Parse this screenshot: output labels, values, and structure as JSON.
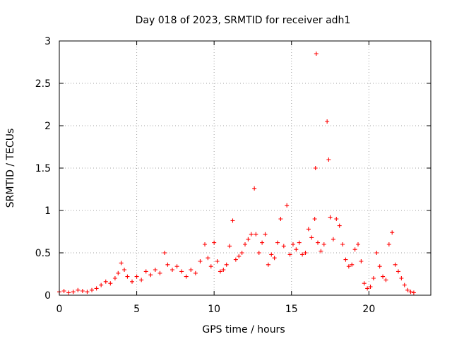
{
  "chart_data": {
    "type": "scatter",
    "title": "Day 018 of 2023, SRMTID for receiver adh1",
    "xlabel": "GPS time / hours",
    "ylabel": "SRMTID / TECUs",
    "xlim": [
      0,
      24
    ],
    "ylim": [
      0,
      3
    ],
    "xticks": [
      0,
      5,
      10,
      15,
      20
    ],
    "xtick_labels": [
      "0",
      "5",
      "10",
      "15",
      "20"
    ],
    "yticks": [
      0,
      0.5,
      1,
      1.5,
      2,
      2.5,
      3
    ],
    "ytick_labels": [
      "0",
      "0.5",
      "1",
      "1.5",
      "2",
      "2.5",
      "3"
    ],
    "grid": true,
    "marker": "+",
    "color": "#ff0000",
    "series": [
      {
        "name": "SRMTID",
        "x": [
          0.0,
          0.3,
          0.6,
          0.9,
          1.2,
          1.5,
          1.8,
          2.1,
          2.4,
          2.7,
          3.0,
          3.3,
          3.6,
          3.8,
          4.0,
          4.2,
          4.4,
          4.7,
          5.0,
          5.3,
          5.6,
          5.9,
          6.2,
          6.5,
          6.8,
          7.0,
          7.3,
          7.6,
          7.9,
          8.2,
          8.5,
          8.8,
          9.1,
          9.4,
          9.6,
          9.8,
          10.0,
          10.2,
          10.4,
          10.6,
          10.8,
          11.0,
          11.2,
          11.4,
          11.6,
          11.8,
          12.0,
          12.2,
          12.4,
          12.6,
          12.7,
          12.9,
          13.1,
          13.3,
          13.5,
          13.7,
          13.9,
          14.1,
          14.3,
          14.5,
          14.7,
          14.9,
          15.1,
          15.3,
          15.5,
          15.7,
          15.9,
          16.1,
          16.3,
          16.5,
          16.55,
          16.6,
          16.7,
          16.9,
          17.1,
          17.3,
          17.4,
          17.5,
          17.7,
          17.9,
          18.1,
          18.3,
          18.5,
          18.7,
          18.9,
          19.1,
          19.3,
          19.5,
          19.7,
          19.9,
          20.1,
          20.3,
          20.5,
          20.7,
          20.9,
          21.1,
          21.3,
          21.5,
          21.7,
          21.9,
          22.1,
          22.3,
          22.5,
          22.7,
          22.9
        ],
        "y": [
          0.04,
          0.05,
          0.03,
          0.04,
          0.06,
          0.05,
          0.04,
          0.06,
          0.08,
          0.12,
          0.16,
          0.14,
          0.2,
          0.26,
          0.38,
          0.3,
          0.22,
          0.16,
          0.22,
          0.18,
          0.28,
          0.24,
          0.3,
          0.26,
          0.5,
          0.36,
          0.3,
          0.34,
          0.28,
          0.22,
          0.3,
          0.26,
          0.4,
          0.6,
          0.44,
          0.34,
          0.62,
          0.4,
          0.28,
          0.3,
          0.36,
          0.58,
          0.88,
          0.42,
          0.46,
          0.5,
          0.6,
          0.66,
          0.72,
          1.26,
          0.72,
          0.5,
          0.62,
          0.72,
          0.36,
          0.48,
          0.44,
          0.62,
          0.9,
          0.58,
          1.06,
          0.48,
          0.6,
          0.54,
          0.62,
          0.48,
          0.5,
          0.78,
          0.68,
          0.9,
          1.5,
          2.85,
          0.62,
          0.52,
          0.6,
          2.05,
          1.6,
          0.92,
          0.66,
          0.9,
          0.82,
          0.6,
          0.42,
          0.34,
          0.36,
          0.54,
          0.6,
          0.4,
          0.14,
          0.08,
          0.1,
          0.2,
          0.5,
          0.34,
          0.22,
          0.18,
          0.6,
          0.74,
          0.36,
          0.28,
          0.2,
          0.12,
          0.06,
          0.04,
          0.03
        ]
      }
    ]
  }
}
